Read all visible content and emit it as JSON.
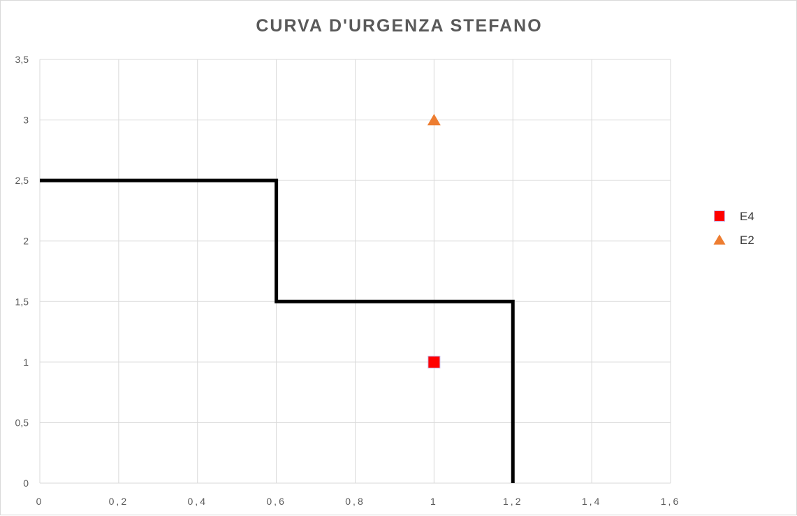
{
  "chart_data": {
    "type": "scatter",
    "title": "CURVA D'URGENZA STEFANO",
    "xlabel": "",
    "ylabel": "",
    "xlim": [
      0,
      1.6
    ],
    "ylim": [
      0,
      3.5
    ],
    "grid": true,
    "legend_position": "right",
    "x_ticks": [
      "0",
      "0,2",
      "0,4",
      "0,6",
      "0,8",
      "1",
      "1,2",
      "1,4",
      "1,6"
    ],
    "y_ticks": [
      "0",
      "0,5",
      "1",
      "1,5",
      "2",
      "2,5",
      "3",
      "3,5"
    ],
    "series": [
      {
        "name": "E4",
        "marker": "square",
        "color": "#ff0000",
        "points": [
          {
            "x": 1,
            "y": 1
          }
        ]
      },
      {
        "name": "E2",
        "marker": "triangle",
        "color": "#ed7d31",
        "points": [
          {
            "x": 1,
            "y": 3
          }
        ]
      }
    ],
    "threshold_curve": {
      "color": "#000000",
      "points": [
        {
          "x": 0,
          "y": 2.5
        },
        {
          "x": 0.6,
          "y": 2.5
        },
        {
          "x": 0.6,
          "y": 1.5
        },
        {
          "x": 1.2,
          "y": 1.5
        },
        {
          "x": 1.2,
          "y": 0
        }
      ]
    }
  }
}
